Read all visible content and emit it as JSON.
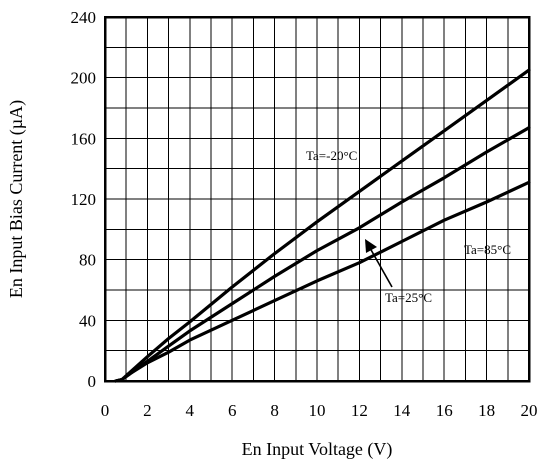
{
  "chart_data": {
    "type": "line",
    "xlabel": "En Input Voltage (V)",
    "ylabel": "En Input Bias Current (µA)",
    "xlim": [
      0,
      20
    ],
    "ylim": [
      0,
      240
    ],
    "x_ticks": [
      "0",
      "2",
      "4",
      "6",
      "8",
      "10",
      "12",
      "14",
      "16",
      "18",
      "20"
    ],
    "y_ticks": [
      "0",
      "40",
      "80",
      "120",
      "160",
      "200",
      "240"
    ],
    "grid": true,
    "series": [
      {
        "name": "Ta=-20°C",
        "x": [
          0.5,
          0.8,
          1.2,
          2.0,
          3.0,
          4.0,
          6.0,
          8.0,
          10.0,
          12.0,
          14.0,
          16.0,
          18.0,
          20.0
        ],
        "y": [
          0,
          1,
          6,
          16,
          28,
          39,
          62,
          84,
          105,
          125,
          145,
          165,
          185,
          205
        ]
      },
      {
        "name": "Ta=25°C",
        "x": [
          0.5,
          0.8,
          1.2,
          2.0,
          3.0,
          4.0,
          6.0,
          8.0,
          10.0,
          12.0,
          14.0,
          16.0,
          18.0,
          20.0
        ],
        "y": [
          0,
          1,
          5,
          13,
          23,
          33,
          51,
          69,
          86,
          101,
          118,
          134,
          151,
          167
        ]
      },
      {
        "name": "Ta=85°C",
        "x": [
          0.5,
          0.8,
          1.2,
          2.0,
          3.0,
          4.0,
          6.0,
          8.0,
          10.0,
          12.0,
          14.0,
          16.0,
          18.0,
          20.0
        ],
        "y": [
          0,
          1,
          5,
          12,
          19,
          27,
          40,
          53,
          66,
          78,
          92,
          106,
          118,
          131
        ]
      }
    ],
    "annotations": [
      {
        "text": "Ta=-20°C",
        "target_series": "Ta=-20°C"
      },
      {
        "text": "Ta=85°C",
        "target_series": "Ta=85°C"
      },
      {
        "text": "Ta=25°C",
        "target_series": "Ta=25°C",
        "arrow": true
      }
    ]
  }
}
